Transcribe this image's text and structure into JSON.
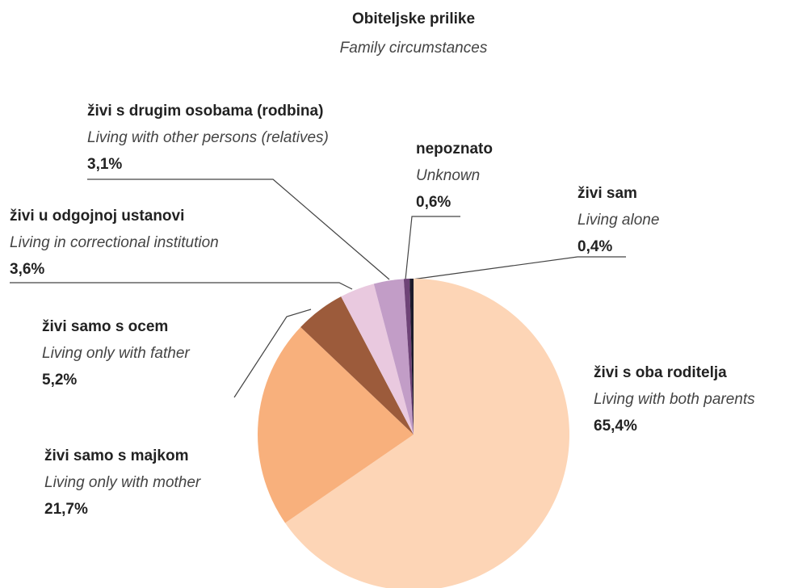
{
  "chart_data": {
    "type": "pie",
    "title": "Obiteljske prilike",
    "subtitle": "Family circumstances",
    "categories": [
      "živi s oba roditelja",
      "živi samo s majkom",
      "živi samo s ocem",
      "živi u odgojnoj ustanovi",
      "živi s drugim osobama (rodbina)",
      "nepoznato",
      "živi sam"
    ],
    "categories_en": [
      "Living with both parents",
      "Living only with mother",
      "Living only with father",
      "Living in correctional institution",
      "Living with other persons (relatives)",
      "Unknown",
      "Living alone"
    ],
    "values": [
      65.4,
      21.7,
      5.2,
      3.6,
      3.1,
      0.6,
      0.4
    ],
    "value_labels": [
      "65,4%",
      "21,7%",
      "5,2%",
      "3,6%",
      "3,1%",
      "0,6%",
      "0,4%"
    ],
    "colors": [
      "#fdd5b6",
      "#f8b07c",
      "#9c5b3b",
      "#e9c9df",
      "#c29dc7",
      "#6e4377",
      "#1c1b2b"
    ]
  }
}
